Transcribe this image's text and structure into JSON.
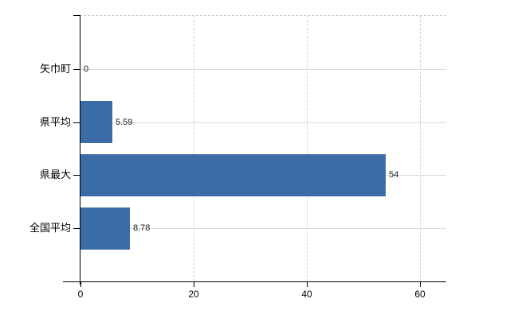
{
  "chart_data": {
    "type": "bar",
    "orientation": "horizontal",
    "title": "",
    "xlabel": "",
    "ylabel": "",
    "categories": [
      "矢巾町",
      "県平均",
      "県最大",
      "全国平均"
    ],
    "values": [
      0,
      5.59,
      54,
      8.78
    ],
    "value_labels": [
      "0",
      "5.59",
      "54",
      "8.78"
    ],
    "x_ticks": [
      0,
      20,
      40,
      60
    ],
    "x_tick_labels": [
      "0",
      "20",
      "40",
      "60"
    ],
    "xlim": [
      0,
      64.6
    ],
    "grid": true,
    "legend": false,
    "colors": {
      "bar": "#3c6ca8",
      "h_gridline": "#d4ddd6",
      "v_gridline": "#d2d0d8",
      "top_border": "#cccccc",
      "axis": "#000000",
      "background": "#ffffff",
      "text": "#000000"
    }
  }
}
